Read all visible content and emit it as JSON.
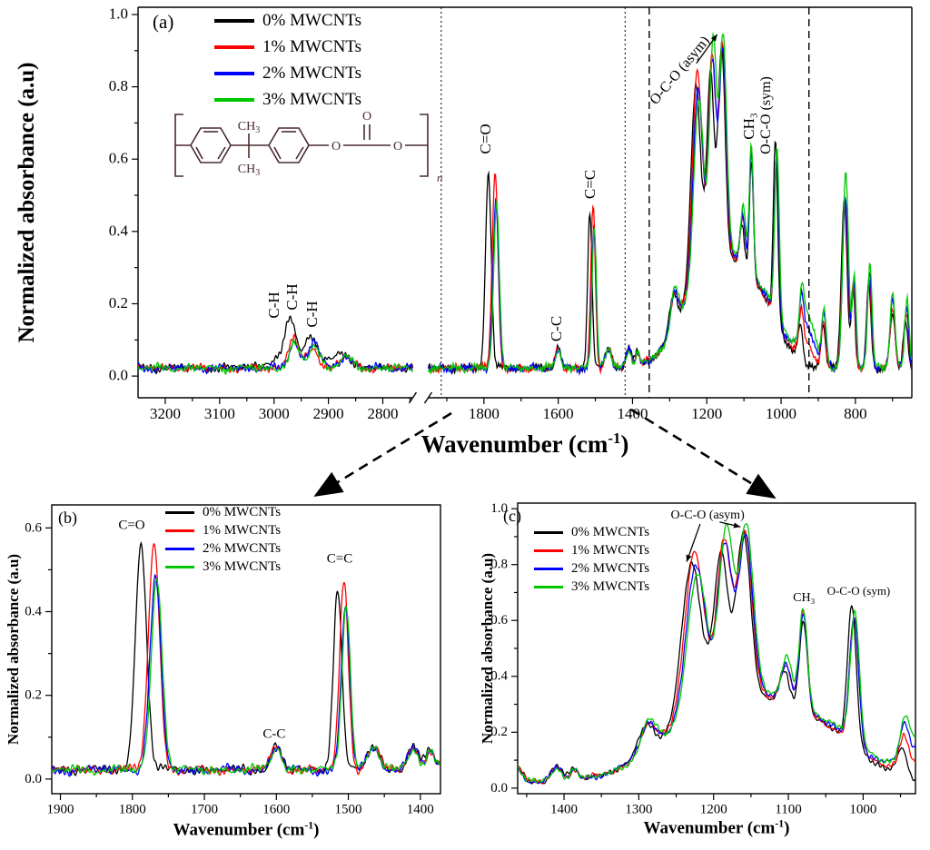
{
  "figure": {
    "background": "#ffffff",
    "noise_amp": 0.01
  },
  "chart_data": [
    {
      "id": "a",
      "type": "line",
      "letter": "(a)",
      "xlabel": "Wavenumber (cm-1)",
      "xlabel_main": "Wavenumber (cm",
      "xlabel_sup": "-1",
      "xlabel_close": ")",
      "ylabel": "Normalized absorbance (a.u)",
      "x_axis": {
        "unit": "cm-1",
        "reversed": true,
        "segments": [
          {
            "x0": 3250,
            "x1": 2745,
            "f0": 0.0,
            "f1": 0.355
          },
          {
            "x0": 1950,
            "x1": 648,
            "f0": 0.375,
            "f1": 1.0
          }
        ],
        "break_between": [
          2745,
          1950
        ],
        "ticks": [
          3200,
          3100,
          3000,
          2900,
          2800,
          1800,
          1600,
          1400,
          1200,
          1000,
          800
        ],
        "minor": [
          3150,
          3050,
          2950,
          2850,
          2750,
          1900,
          1700,
          1500,
          1300,
          1100,
          900,
          700
        ]
      },
      "ylim": [
        0,
        1.0
      ],
      "y_ticks": [
        0,
        0.2,
        0.4,
        0.6,
        0.8,
        1.0
      ],
      "y_minor": [
        0.1,
        0.3,
        0.5,
        0.7,
        0.9
      ],
      "guides": [
        {
          "x": 1915,
          "style": "dotted"
        },
        {
          "x": 1420,
          "style": "dotted"
        },
        {
          "x": 1355,
          "style": "dashed"
        },
        {
          "x": 925,
          "style": "dashed"
        }
      ],
      "legend_labels": [
        "0% MWCNTs",
        "1% MWCNTs",
        "2% MWCNTs",
        "3% MWCNTs"
      ],
      "annotations": [
        {
          "text": "C-H",
          "x": 2999,
          "y": 0.195,
          "rot": -90
        },
        {
          "text": "C-H",
          "x": 2966,
          "y": 0.22,
          "rot": -90
        },
        {
          "text": "C-H",
          "x": 2929,
          "y": 0.17,
          "rot": -90
        },
        {
          "text": "C=O",
          "x": 1794,
          "y": 0.655,
          "rot": -90
        },
        {
          "text": "C-C",
          "x": 1604,
          "y": 0.13,
          "rot": -90
        },
        {
          "text": "C=C",
          "x": 1513,
          "y": 0.53,
          "rot": -90
        },
        {
          "text": "O-C-O (asym)",
          "x": 1272,
          "y": 0.845,
          "rot": -50,
          "fs": 16
        },
        {
          "text": "CH₃",
          "x": 1086,
          "y": 0.69,
          "rot": -90
        },
        {
          "text": "O-C-O (sym)",
          "x": 1040,
          "y": 0.72,
          "rot": -90,
          "fs": 16
        }
      ],
      "arrows": [
        {
          "x1": 1228,
          "y1": 0.865,
          "x2": 1172,
          "y2": 0.945
        }
      ],
      "structure": {
        "ch3_main": "CH",
        "ch3_sub": "3",
        "o_left": "O",
        "o_top": "O",
        "o_right": "O",
        "n_sub": "n"
      },
      "peaks_format": "[center_cm-1, height_absorbance, half_width_cm-1]",
      "series": [
        {
          "name": "0% MWCNTs",
          "color": "#000000",
          "seed": 1,
          "baseline": 0.022,
          "peaks": [
            [
              2950,
              0.03,
              60
            ],
            [
              2970,
              0.115,
              11
            ],
            [
              2932,
              0.06,
              12
            ],
            [
              2872,
              0.035,
              14
            ],
            [
              1788,
              0.545,
              9
            ],
            [
              1600,
              0.06,
              8
            ],
            [
              1515,
              0.43,
              7
            ],
            [
              1465,
              0.055,
              10
            ],
            [
              1410,
              0.05,
              8
            ],
            [
              1387,
              0.045,
              6
            ],
            [
              1290,
              0.1,
              12
            ],
            [
              1170,
              0.32,
              95
            ],
            [
              1040,
              0.1,
              55
            ],
            [
              1230,
              0.54,
              15
            ],
            [
              1190,
              0.51,
              11
            ],
            [
              1160,
              0.57,
              11
            ],
            [
              1105,
              0.13,
              8
            ],
            [
              1080,
              0.34,
              6.5
            ],
            [
              1015,
              0.49,
              7
            ],
            [
              948,
              0.1,
              7
            ],
            [
              887,
              0.12,
              7
            ],
            [
              830,
              0.47,
              9
            ],
            [
              806,
              0.22,
              6
            ],
            [
              764,
              0.23,
              7
            ],
            [
              700,
              0.15,
              8
            ],
            [
              665,
              0.13,
              7
            ]
          ]
        },
        {
          "name": "1% MWCNTs",
          "color": "#ff0000",
          "seed": 2,
          "baseline": 0.022,
          "peaks": [
            [
              2965,
              0.085,
              11
            ],
            [
              2929,
              0.055,
              12
            ],
            [
              2869,
              0.03,
              14
            ],
            [
              1770,
              0.545,
              9
            ],
            [
              1600,
              0.058,
              8
            ],
            [
              1506,
              0.455,
              7
            ],
            [
              1465,
              0.052,
              10
            ],
            [
              1410,
              0.05,
              8
            ],
            [
              1387,
              0.04,
              6
            ],
            [
              1288,
              0.1,
              12
            ],
            [
              1168,
              0.33,
              95
            ],
            [
              1038,
              0.1,
              55
            ],
            [
              1226,
              0.57,
              15
            ],
            [
              1186,
              0.54,
              11
            ],
            [
              1158,
              0.56,
              11
            ],
            [
              1103,
              0.14,
              8
            ],
            [
              1080,
              0.36,
              6.5
            ],
            [
              1012,
              0.45,
              7
            ],
            [
              946,
              0.1,
              7
            ],
            [
              935,
              0.06,
              20
            ],
            [
              886,
              0.13,
              7
            ],
            [
              828,
              0.45,
              9
            ],
            [
              805,
              0.23,
              6
            ],
            [
              763,
              0.25,
              7
            ],
            [
              700,
              0.17,
              8
            ],
            [
              663,
              0.15,
              7
            ]
          ]
        },
        {
          "name": "2% MWCNTs",
          "color": "#0000ff",
          "seed": 3,
          "baseline": 0.022,
          "peaks": [
            [
              2963,
              0.07,
              11
            ],
            [
              2927,
              0.075,
              12
            ],
            [
              2868,
              0.032,
              14
            ],
            [
              1768,
              0.455,
              9
            ],
            [
              1600,
              0.055,
              8
            ],
            [
              1504,
              0.39,
              7
            ],
            [
              1465,
              0.05,
              10
            ],
            [
              1410,
              0.048,
              8
            ],
            [
              1387,
              0.035,
              6
            ],
            [
              1288,
              0.105,
              12
            ],
            [
              1168,
              0.33,
              95
            ],
            [
              1038,
              0.105,
              55
            ],
            [
              1224,
              0.51,
              15
            ],
            [
              1185,
              0.53,
              11
            ],
            [
              1157,
              0.55,
              11
            ],
            [
              1103,
              0.15,
              8
            ],
            [
              1080,
              0.345,
              6.5
            ],
            [
              1012,
              0.455,
              7
            ],
            [
              945,
              0.11,
              7
            ],
            [
              930,
              0.1,
              25
            ],
            [
              885,
              0.14,
              7
            ],
            [
              827,
              0.47,
              9
            ],
            [
              804,
              0.24,
              6
            ],
            [
              762,
              0.27,
              7
            ],
            [
              700,
              0.19,
              8
            ],
            [
              662,
              0.17,
              7
            ]
          ]
        },
        {
          "name": "3% MWCNTs",
          "color": "#00c800",
          "seed": 4,
          "baseline": 0.022,
          "peaks": [
            [
              2962,
              0.065,
              11
            ],
            [
              2926,
              0.062,
              12
            ],
            [
              2867,
              0.028,
              14
            ],
            [
              1766,
              0.455,
              9
            ],
            [
              1600,
              0.055,
              8
            ],
            [
              1503,
              0.395,
              7
            ],
            [
              1465,
              0.05,
              10
            ],
            [
              1410,
              0.048,
              8
            ],
            [
              1387,
              0.035,
              6
            ],
            [
              1287,
              0.11,
              12
            ],
            [
              1166,
              0.34,
              95
            ],
            [
              1036,
              0.11,
              55
            ],
            [
              1222,
              0.48,
              15
            ],
            [
              1183,
              0.57,
              11
            ],
            [
              1156,
              0.58,
              11
            ],
            [
              1102,
              0.16,
              8
            ],
            [
              1080,
              0.35,
              6.5
            ],
            [
              1011,
              0.46,
              7
            ],
            [
              944,
              0.115,
              7
            ],
            [
              928,
              0.13,
              25
            ],
            [
              884,
              0.15,
              7
            ],
            [
              826,
              0.54,
              9
            ],
            [
              803,
              0.26,
              6
            ],
            [
              761,
              0.29,
              7
            ],
            [
              700,
              0.21,
              8
            ],
            [
              661,
              0.19,
              7
            ]
          ]
        }
      ]
    },
    {
      "id": "b",
      "type": "line",
      "letter": "(b)",
      "zoom_of": "a",
      "series_ref": 0,
      "xlabel": "Wavenumber (cm-1)",
      "xlabel_main": "Wavenumber (cm",
      "xlabel_sup": "-1",
      "xlabel_close": ")",
      "ylabel": "Normalized absorbance (a.u)",
      "x_axis": {
        "unit": "cm-1",
        "reversed": true,
        "range": [
          1912,
          1372
        ],
        "ticks": [
          1900,
          1800,
          1700,
          1600,
          1500,
          1400
        ],
        "minor": [
          1850,
          1750,
          1650,
          1550,
          1450
        ]
      },
      "ylim": [
        0,
        0.65
      ],
      "y_ticks": [
        0,
        0.2,
        0.4,
        0.6
      ],
      "y_minor": [
        0.1,
        0.3,
        0.5
      ],
      "legend_labels": [
        "0% MWCNTs",
        "1% MWCNTs",
        "2% MWCNTs",
        "3% MWCNTs"
      ],
      "annotations": [
        {
          "text": "C=O",
          "x": 1801,
          "y": 0.605,
          "rot": 0
        },
        {
          "text": "C-C",
          "x": 1603,
          "y": 0.105,
          "rot": 0
        },
        {
          "text": "C=C",
          "x": 1512,
          "y": 0.525,
          "rot": 0
        }
      ]
    },
    {
      "id": "c",
      "type": "line",
      "letter": "(c)",
      "zoom_of": "a",
      "series_ref": 0,
      "xlabel": "Wavenumber (cm-1)",
      "xlabel_main": "Wavenumber (cm",
      "xlabel_sup": "-1",
      "xlabel_close": ")",
      "ylabel": "Normalized absorbance (a.u)",
      "x_axis": {
        "unit": "cm-1",
        "reversed": true,
        "range": [
          1462,
          930
        ],
        "ticks": [
          1400,
          1300,
          1200,
          1100,
          1000
        ],
        "minor": [
          1450,
          1350,
          1250,
          1150,
          1050,
          950
        ]
      },
      "ylim": [
        0,
        1.0
      ],
      "y_ticks": [
        0,
        0.2,
        0.4,
        0.6,
        0.8,
        1.0
      ],
      "y_minor": [
        0.1,
        0.3,
        0.5,
        0.7,
        0.9
      ],
      "legend_labels": [
        "0% MWCNTs",
        "1% MWCNTs",
        "2% MWCNTs",
        "3% MWCNTs"
      ],
      "annotations": [
        {
          "text": "O-C-O (asym)",
          "x": 1208,
          "y": 0.975,
          "rot": 0
        },
        {
          "text": "CH₃",
          "x": 1079,
          "y": 0.68,
          "rot": 0
        },
        {
          "text": "O-C-O (sym)",
          "x": 1006,
          "y": 0.705,
          "rot": 0,
          "fs": 13
        }
      ],
      "arrows": [
        {
          "x1": 1218,
          "y1": 0.945,
          "x2": 1236,
          "y2": 0.81
        },
        {
          "x1": 1192,
          "y1": 0.952,
          "x2": 1164,
          "y2": 0.935
        }
      ]
    }
  ]
}
